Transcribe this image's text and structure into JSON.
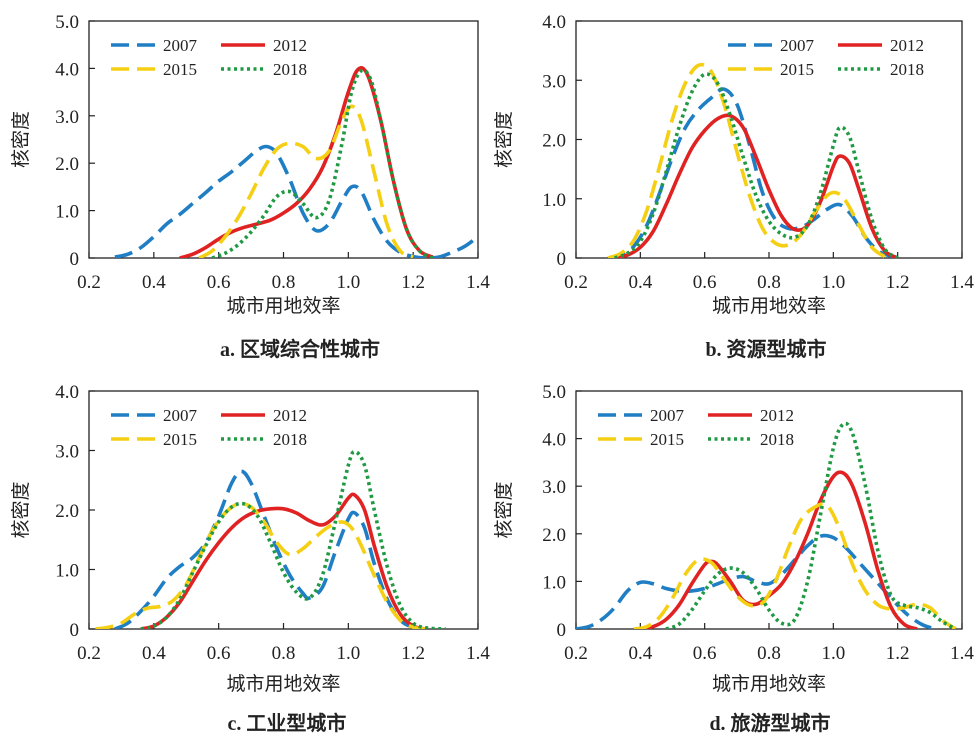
{
  "figure": {
    "legend_entries": [
      "2007",
      "2012",
      "2015",
      "2018"
    ]
  },
  "series_styles": {
    "2007": {
      "color": "#1f7ec4",
      "dash": "long-dash"
    },
    "2012": {
      "color": "#e02222",
      "dash": "solid"
    },
    "2015": {
      "color": "#f5cf13",
      "dash": "long-dash"
    },
    "2018": {
      "color": "#1f9a43",
      "dash": "dotted"
    }
  },
  "chart_data": [
    {
      "type": "line",
      "caption": "a. 区域综合性城市",
      "xlabel": "城市用地效率",
      "ylabel": "核密度",
      "xlim": [
        0.2,
        1.4
      ],
      "ylim": [
        0,
        5.0
      ],
      "xticks": [
        "0.2",
        "0.4",
        "0.6",
        "0.8",
        "1.0",
        "1.2",
        "1.4"
      ],
      "yticks": [
        "0",
        "1.0",
        "2.0",
        "3.0",
        "4.0",
        "5.0"
      ],
      "legend_position": "top-left",
      "series": [
        {
          "name": "2007",
          "x": [
            0.28,
            0.32,
            0.36,
            0.4,
            0.44,
            0.48,
            0.52,
            0.56,
            0.6,
            0.64,
            0.68,
            0.72,
            0.75,
            0.78,
            0.82,
            0.86,
            0.9,
            0.94,
            0.98,
            1.01,
            1.04,
            1.08,
            1.12,
            1.16,
            1.2,
            1.24,
            1.28,
            1.32,
            1.36,
            1.4
          ],
          "y": [
            0.02,
            0.08,
            0.22,
            0.45,
            0.72,
            0.92,
            1.15,
            1.38,
            1.62,
            1.82,
            2.05,
            2.28,
            2.35,
            2.2,
            1.65,
            0.95,
            0.58,
            0.72,
            1.2,
            1.5,
            1.4,
            0.8,
            0.35,
            0.12,
            0.03,
            0.0,
            0.02,
            0.12,
            0.25,
            0.45
          ]
        },
        {
          "name": "2012",
          "x": [
            0.48,
            0.52,
            0.56,
            0.6,
            0.64,
            0.68,
            0.72,
            0.76,
            0.8,
            0.84,
            0.88,
            0.92,
            0.96,
            1.0,
            1.03,
            1.06,
            1.1,
            1.14,
            1.18,
            1.22,
            1.26
          ],
          "y": [
            0.0,
            0.08,
            0.22,
            0.4,
            0.55,
            0.65,
            0.72,
            0.8,
            0.95,
            1.15,
            1.45,
            1.9,
            2.6,
            3.5,
            3.98,
            3.85,
            2.9,
            1.6,
            0.6,
            0.15,
            0.02
          ]
        },
        {
          "name": "2015",
          "x": [
            0.54,
            0.58,
            0.62,
            0.66,
            0.7,
            0.74,
            0.78,
            0.82,
            0.86,
            0.9,
            0.94,
            0.98,
            1.01,
            1.04,
            1.08,
            1.12,
            1.16,
            1.2
          ],
          "y": [
            0.0,
            0.15,
            0.45,
            0.85,
            1.35,
            1.9,
            2.3,
            2.42,
            2.35,
            2.1,
            2.25,
            2.9,
            3.2,
            2.9,
            1.8,
            0.7,
            0.15,
            0.02
          ]
        },
        {
          "name": "2018",
          "x": [
            0.58,
            0.62,
            0.66,
            0.7,
            0.74,
            0.78,
            0.82,
            0.86,
            0.9,
            0.94,
            0.98,
            1.01,
            1.04,
            1.07,
            1.1,
            1.14,
            1.18,
            1.22,
            1.26
          ],
          "y": [
            0.0,
            0.1,
            0.28,
            0.55,
            0.9,
            1.3,
            1.4,
            1.15,
            0.85,
            1.2,
            2.4,
            3.5,
            3.95,
            3.75,
            2.9,
            1.6,
            0.6,
            0.15,
            0.0
          ]
        }
      ]
    },
    {
      "type": "line",
      "caption": "b. 资源型城市",
      "xlabel": "城市用地效率",
      "ylabel": "核密度",
      "xlim": [
        0.2,
        1.4
      ],
      "ylim": [
        0,
        4.0
      ],
      "xticks": [
        "0.2",
        "0.4",
        "0.6",
        "0.8",
        "1.0",
        "1.2",
        "1.4"
      ],
      "yticks": [
        "0",
        "1.0",
        "2.0",
        "3.0",
        "4.0"
      ],
      "legend_position": "top-right",
      "series": [
        {
          "name": "2007",
          "x": [
            0.3,
            0.34,
            0.38,
            0.42,
            0.46,
            0.5,
            0.54,
            0.58,
            0.62,
            0.66,
            0.7,
            0.74,
            0.78,
            0.82,
            0.86,
            0.9,
            0.94,
            0.98,
            1.02,
            1.06,
            1.1,
            1.14,
            1.18,
            1.22
          ],
          "y": [
            0.0,
            0.05,
            0.2,
            0.55,
            1.1,
            1.7,
            2.2,
            2.5,
            2.7,
            2.85,
            2.6,
            1.9,
            1.1,
            0.65,
            0.5,
            0.52,
            0.65,
            0.82,
            0.9,
            0.7,
            0.35,
            0.12,
            0.03,
            0.0
          ]
        },
        {
          "name": "2012",
          "x": [
            0.32,
            0.36,
            0.4,
            0.44,
            0.48,
            0.52,
            0.56,
            0.6,
            0.64,
            0.68,
            0.72,
            0.76,
            0.8,
            0.84,
            0.88,
            0.92,
            0.96,
            1.0,
            1.02,
            1.05,
            1.08,
            1.12,
            1.16,
            1.2
          ],
          "y": [
            0.0,
            0.05,
            0.18,
            0.45,
            0.9,
            1.4,
            1.85,
            2.15,
            2.35,
            2.4,
            2.2,
            1.7,
            1.15,
            0.7,
            0.48,
            0.55,
            0.95,
            1.55,
            1.72,
            1.6,
            1.15,
            0.5,
            0.12,
            0.0
          ]
        },
        {
          "name": "2015",
          "x": [
            0.3,
            0.34,
            0.38,
            0.42,
            0.46,
            0.5,
            0.54,
            0.58,
            0.62,
            0.66,
            0.7,
            0.74,
            0.78,
            0.82,
            0.86,
            0.9,
            0.94,
            0.98,
            1.01,
            1.04,
            1.08,
            1.12,
            1.16
          ],
          "y": [
            0.0,
            0.08,
            0.3,
            0.8,
            1.55,
            2.35,
            2.95,
            3.25,
            3.15,
            2.6,
            1.8,
            1.05,
            0.5,
            0.25,
            0.22,
            0.4,
            0.75,
            1.05,
            1.1,
            0.95,
            0.55,
            0.18,
            0.02
          ]
        },
        {
          "name": "2018",
          "x": [
            0.32,
            0.36,
            0.4,
            0.44,
            0.48,
            0.52,
            0.56,
            0.6,
            0.64,
            0.68,
            0.72,
            0.76,
            0.8,
            0.84,
            0.88,
            0.92,
            0.96,
            1.0,
            1.02,
            1.05,
            1.08,
            1.12,
            1.16,
            1.2
          ],
          "y": [
            0.0,
            0.08,
            0.28,
            0.75,
            1.45,
            2.2,
            2.8,
            3.1,
            2.95,
            2.4,
            1.7,
            1.05,
            0.62,
            0.4,
            0.35,
            0.55,
            1.1,
            1.9,
            2.2,
            2.05,
            1.45,
            0.65,
            0.15,
            0.0
          ]
        }
      ]
    },
    {
      "type": "line",
      "caption": "c. 工业型城市",
      "xlabel": "城市用地效率",
      "ylabel": "核密度",
      "xlim": [
        0.2,
        1.4
      ],
      "ylim": [
        0,
        4.0
      ],
      "xticks": [
        "0.2",
        "0.4",
        "0.6",
        "0.8",
        "1.0",
        "1.2",
        "1.4"
      ],
      "yticks": [
        "0",
        "1.0",
        "2.0",
        "3.0",
        "4.0"
      ],
      "legend_position": "top-left",
      "series": [
        {
          "name": "2007",
          "x": [
            0.28,
            0.32,
            0.36,
            0.4,
            0.44,
            0.48,
            0.52,
            0.56,
            0.6,
            0.64,
            0.67,
            0.7,
            0.74,
            0.78,
            0.82,
            0.86,
            0.88,
            0.92,
            0.96,
            1.0,
            1.02,
            1.05,
            1.08,
            1.12,
            1.16,
            1.2,
            1.24
          ],
          "y": [
            0.0,
            0.1,
            0.3,
            0.55,
            0.85,
            1.05,
            1.2,
            1.45,
            1.9,
            2.45,
            2.65,
            2.45,
            1.9,
            1.35,
            0.9,
            0.6,
            0.52,
            0.7,
            1.3,
            1.85,
            1.95,
            1.7,
            1.1,
            0.5,
            0.15,
            0.03,
            0.0
          ]
        },
        {
          "name": "2012",
          "x": [
            0.36,
            0.4,
            0.44,
            0.48,
            0.52,
            0.56,
            0.6,
            0.64,
            0.68,
            0.72,
            0.76,
            0.8,
            0.84,
            0.88,
            0.92,
            0.96,
            1.0,
            1.02,
            1.05,
            1.08,
            1.12,
            1.16,
            1.2,
            1.24
          ],
          "y": [
            0.0,
            0.05,
            0.2,
            0.45,
            0.8,
            1.15,
            1.45,
            1.7,
            1.88,
            1.98,
            2.02,
            2.02,
            1.95,
            1.82,
            1.75,
            1.9,
            2.2,
            2.25,
            2.0,
            1.4,
            0.7,
            0.25,
            0.05,
            0.0
          ]
        },
        {
          "name": "2015",
          "x": [
            0.22,
            0.26,
            0.3,
            0.34,
            0.38,
            0.42,
            0.46,
            0.5,
            0.54,
            0.58,
            0.62,
            0.66,
            0.7,
            0.74,
            0.78,
            0.82,
            0.86,
            0.9,
            0.94,
            0.98,
            1.01,
            1.04,
            1.08,
            1.12,
            1.16,
            1.2,
            1.24
          ],
          "y": [
            0.0,
            0.03,
            0.1,
            0.25,
            0.35,
            0.38,
            0.48,
            0.75,
            1.2,
            1.65,
            1.95,
            2.1,
            2.05,
            1.8,
            1.45,
            1.25,
            1.35,
            1.55,
            1.72,
            1.8,
            1.7,
            1.4,
            0.9,
            0.45,
            0.15,
            0.03,
            0.0
          ]
        },
        {
          "name": "2018",
          "x": [
            0.36,
            0.4,
            0.44,
            0.48,
            0.52,
            0.56,
            0.6,
            0.64,
            0.68,
            0.72,
            0.76,
            0.8,
            0.84,
            0.88,
            0.92,
            0.96,
            1.0,
            1.02,
            1.05,
            1.08,
            1.12,
            1.16,
            1.2,
            1.24,
            1.3
          ],
          "y": [
            0.0,
            0.05,
            0.2,
            0.5,
            0.95,
            1.4,
            1.8,
            2.05,
            2.1,
            1.9,
            1.45,
            0.95,
            0.62,
            0.52,
            0.9,
            1.8,
            2.75,
            2.98,
            2.75,
            2.0,
            1.05,
            0.4,
            0.1,
            0.02,
            0.0
          ]
        }
      ]
    },
    {
      "type": "line",
      "caption": "d. 旅游型城市",
      "xlabel": "城市用地效率",
      "ylabel": "核密度",
      "xlim": [
        0.2,
        1.4
      ],
      "ylim": [
        0,
        5.0
      ],
      "xticks": [
        "0.2",
        "0.4",
        "0.6",
        "0.8",
        "1.0",
        "1.2",
        "1.4"
      ],
      "yticks": [
        "0",
        "1.0",
        "2.0",
        "3.0",
        "4.0",
        "5.0"
      ],
      "legend_position": "top-left",
      "series": [
        {
          "name": "2007",
          "x": [
            0.2,
            0.24,
            0.28,
            0.32,
            0.36,
            0.4,
            0.44,
            0.48,
            0.52,
            0.56,
            0.6,
            0.64,
            0.68,
            0.72,
            0.76,
            0.8,
            0.84,
            0.88,
            0.92,
            0.96,
            1.0,
            1.04,
            1.08,
            1.12,
            1.16,
            1.2,
            1.24,
            1.28,
            1.32
          ],
          "y": [
            0.0,
            0.05,
            0.2,
            0.45,
            0.8,
            0.98,
            0.95,
            0.85,
            0.8,
            0.8,
            0.85,
            0.95,
            1.05,
            1.1,
            1.0,
            0.95,
            1.15,
            1.45,
            1.75,
            1.95,
            1.92,
            1.7,
            1.4,
            1.1,
            0.8,
            0.5,
            0.25,
            0.08,
            0.0
          ]
        },
        {
          "name": "2012",
          "x": [
            0.4,
            0.44,
            0.48,
            0.52,
            0.56,
            0.6,
            0.62,
            0.64,
            0.68,
            0.72,
            0.76,
            0.8,
            0.84,
            0.88,
            0.92,
            0.96,
            1.0,
            1.03,
            1.06,
            1.1,
            1.14,
            1.18,
            1.22,
            1.26
          ],
          "y": [
            0.0,
            0.05,
            0.2,
            0.5,
            0.95,
            1.35,
            1.42,
            1.35,
            1.0,
            0.6,
            0.52,
            0.7,
            0.95,
            1.4,
            2.0,
            2.7,
            3.2,
            3.28,
            3.0,
            2.2,
            1.2,
            0.45,
            0.1,
            0.0
          ]
        },
        {
          "name": "2015",
          "x": [
            0.38,
            0.42,
            0.46,
            0.5,
            0.54,
            0.58,
            0.62,
            0.66,
            0.7,
            0.74,
            0.78,
            0.82,
            0.86,
            0.9,
            0.94,
            0.98,
            1.02,
            1.06,
            1.1,
            1.14,
            1.18,
            1.22,
            1.26,
            1.3,
            1.34,
            1.38
          ],
          "y": [
            0.0,
            0.05,
            0.25,
            0.65,
            1.15,
            1.45,
            1.4,
            1.05,
            0.7,
            0.5,
            0.55,
            1.0,
            1.7,
            2.3,
            2.55,
            2.6,
            2.1,
            1.35,
            0.8,
            0.5,
            0.42,
            0.45,
            0.52,
            0.45,
            0.18,
            0.0
          ]
        },
        {
          "name": "2018",
          "x": [
            0.48,
            0.52,
            0.56,
            0.6,
            0.64,
            0.68,
            0.72,
            0.76,
            0.8,
            0.84,
            0.88,
            0.92,
            0.96,
            1.0,
            1.03,
            1.06,
            1.1,
            1.14,
            1.18,
            1.22,
            1.26,
            1.3,
            1.34,
            1.38
          ],
          "y": [
            0.0,
            0.1,
            0.4,
            0.8,
            1.15,
            1.28,
            1.18,
            0.85,
            0.4,
            0.12,
            0.2,
            1.0,
            2.4,
            3.8,
            4.3,
            4.1,
            3.0,
            1.6,
            0.7,
            0.5,
            0.45,
            0.35,
            0.15,
            0.0
          ]
        }
      ]
    }
  ]
}
